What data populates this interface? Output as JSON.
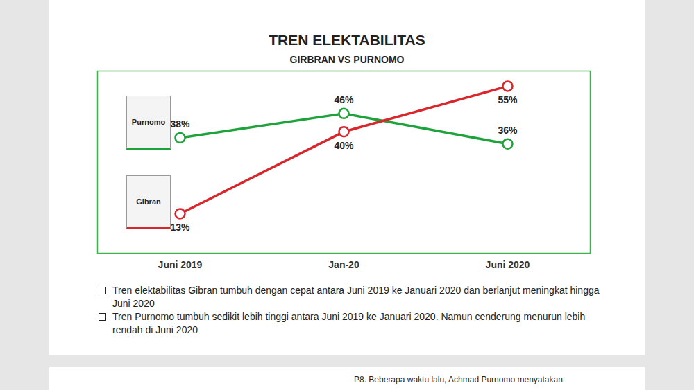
{
  "chart_data": {
    "type": "line",
    "title": "TREN ELEKTABILITAS",
    "subtitle": "GIRBRAN VS PURNOMO",
    "categories": [
      "Juni 2019",
      "Jan-20",
      "Juni 2020"
    ],
    "series": [
      {
        "name": "Purnomo",
        "color": "#1ea33a",
        "marker": "circle",
        "values": [
          38,
          46,
          36
        ],
        "value_labels": [
          "38%",
          "46%",
          "36%"
        ]
      },
      {
        "name": "Gibran",
        "color": "#d8262b",
        "marker": "circle",
        "values": [
          13,
          40,
          55
        ],
        "value_labels": [
          "13%",
          "40%",
          "55%"
        ]
      }
    ],
    "ylim": [
      0,
      60
    ],
    "tick_labels": "x",
    "data_labels": true,
    "annotations": [
      "Tren elektabilitas Gibran tumbuh dengan cepat antara Juni 2019 ke Januari 2020 dan berlanjut meningkat hingga Juni 2020",
      "Tren Purnomo tumbuh sedikit lebih tinggi antara Juni 2019 ke Januari 2020. Namun cenderung menurun lebih rendah di Juni 2020"
    ],
    "footer": "P8. Beberapa waktu lalu, Achmad Purnomo menyatakan"
  }
}
